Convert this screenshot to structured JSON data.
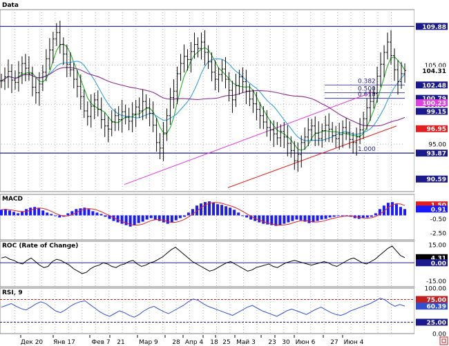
{
  "colors": {
    "frame": "#808080",
    "grid": "#b0b0b0",
    "axis_bg": "#ffffff",
    "price_bar": "#000000",
    "sma_fast": "#22b322",
    "sma_mid": "#33a0e0",
    "sma_slow": "#8a2a8a",
    "trend_channel": "#e040e0",
    "support_line": "#e02020",
    "hline": "#1a1a8c",
    "macd_pos": "#e02020",
    "macd_neg": "#1a1aff",
    "signal": "#e02020",
    "roc": "#000000",
    "rsi": "#3050d0",
    "rsi_levels": "#c02020"
  },
  "chart_data": [
    {
      "type": "line",
      "title": "Data",
      "x_axis": {
        "labels": [
          "Дек 20",
          "Янв 17",
          "Фев 7",
          "21",
          "Мар 9",
          "28",
          "Апр 4",
          "18",
          "25",
          "Май 3",
          "23",
          "30",
          "Июн 6",
          "27",
          "Июн 4"
        ]
      },
      "y_axis": {
        "range": [
          89,
          112
        ],
        "ticks": [
          95.0,
          100.0,
          105.0
        ]
      },
      "price_tags": [
        {
          "value": 109.88,
          "label": "109.88",
          "bg": "#1a1a8c",
          "color": "#ffffff"
        },
        {
          "value": 104.31,
          "label": "104.31",
          "bg": "#ffffff",
          "color": "#000000"
        },
        {
          "value": 102.48,
          "label": "102.48",
          "bg": "#1a1a8c",
          "color": "#ffffff"
        },
        {
          "value": 100.79,
          "label": "100.79",
          "bg": "#1a1a8c",
          "color": "#ffffff"
        },
        {
          "value": 100.23,
          "label": "100.23",
          "bg": "#e040e0",
          "color": "#ffffff"
        },
        {
          "value": 99.15,
          "label": "99.15",
          "bg": "#1a1a8c",
          "color": "#ffffff"
        },
        {
          "value": 96.95,
          "label": "96.95",
          "bg": "#e02020",
          "color": "#ffffff"
        },
        {
          "value": 93.87,
          "label": "93.87",
          "bg": "#1a1a8c",
          "color": "#ffffff"
        },
        {
          "value": 90.59,
          "label": "90.59",
          "bg": "#1a1a8c",
          "color": "#ffffff"
        }
      ],
      "fibonacci": [
        {
          "ratio": "0.382",
          "value": 102.48
        },
        {
          "ratio": "0.500",
          "value": 101.5
        },
        {
          "ratio": "0.618",
          "value": 100.79
        },
        {
          "ratio": "1.000",
          "value": 93.87
        }
      ],
      "horizontal_lines": [
        109.88,
        93.87
      ],
      "price_series": [
        103,
        103.5,
        104.2,
        103.1,
        102.8,
        104,
        105.2,
        104.6,
        103.9,
        102.2,
        101.5,
        102.6,
        104.1,
        105.8,
        106.9,
        108.3,
        109.1,
        107.6,
        106.4,
        105.1,
        104.4,
        103.2,
        102.3,
        101,
        99.2,
        98.5,
        99.8,
        100.6,
        99.4,
        98.1,
        97.3,
        96.9,
        97.8,
        98.6,
        98.1,
        99.1,
        98.4,
        97.9,
        98.8,
        99.7,
        99.2,
        100.4,
        99.6,
        98.9,
        97.4,
        95.2,
        94.5,
        96.3,
        98.6,
        100.9,
        101.7,
        103.9,
        105.2,
        106.1,
        105.7,
        106.7,
        107.6,
        107.1,
        107.9,
        106.6,
        105.4,
        104.1,
        103.2,
        103.8,
        104.5,
        103.2,
        101.8,
        100.6,
        102.4,
        103.5,
        102.9,
        101.7,
        100.7,
        100.1,
        99.4,
        98.6,
        97.8,
        97.1,
        96.8,
        96.3,
        95.8,
        96.6,
        95.9,
        95.1,
        94.2,
        92.9,
        93.7,
        95.2,
        95.9,
        96.8,
        97.3,
        96.4,
        95.7,
        96.7,
        97.4,
        96.9,
        96.1,
        95.7,
        96.2,
        97.1,
        96.4,
        95.6,
        95.2,
        95.9,
        96.8,
        98.2,
        99.6,
        100.4,
        101.4,
        103.6,
        105.1,
        106.6,
        107.9,
        106.2,
        104.4,
        102.9,
        103.9,
        104.31
      ],
      "support_line": {
        "from": 89.5,
        "to": 97.3
      },
      "channel_line": {
        "from": 89.9,
        "to": 101.6
      }
    },
    {
      "type": "bar",
      "title": "MACD",
      "y_axis": {
        "ticks": [
          1.5,
          -0.5,
          -2.5
        ],
        "range": [
          -3.5,
          3
        ]
      },
      "tags": [
        {
          "value": 1.5,
          "label": "1.50",
          "bg": "#e02020"
        },
        {
          "value": 0.9,
          "label": "0.91",
          "bg": "#1a1aff"
        }
      ],
      "histogram": [
        0.8,
        0.9,
        0.7,
        0.5,
        0.3,
        0.6,
        0.9,
        1.1,
        1.2,
        1.0,
        0.7,
        0.4,
        0.2,
        -0.1,
        -0.3,
        -0.2,
        0.3,
        0.6,
        0.9,
        1.0,
        1.1,
        0.9,
        0.6,
        0.4,
        0.2,
        -0.2,
        -0.5,
        -0.8,
        -1.0,
        -1.2,
        -1.4,
        -1.6,
        -1.4,
        -1.1,
        -0.9,
        -0.6,
        -0.4,
        -0.6,
        -0.8,
        -1.0,
        -1.2,
        -1.0,
        -0.7,
        -0.4,
        -0.2,
        0.4,
        0.9,
        1.4,
        1.7,
        1.9,
        2.0,
        1.8,
        1.6,
        1.5,
        1.3,
        1.1,
        0.8,
        0.4,
        0.0,
        -0.3,
        -0.6,
        -0.8,
        -1.0,
        -1.2,
        -1.3,
        -1.4,
        -1.5,
        -1.4,
        -1.2,
        -1.0,
        -0.8,
        -0.6,
        -0.7,
        -0.9,
        -1.1,
        -1.0,
        -0.8,
        -0.6,
        -0.5,
        -0.3,
        -0.2,
        -0.1,
        0.0,
        -0.1,
        -0.2,
        -0.4,
        -0.5,
        -0.4,
        -0.3,
        -0.2,
        0.3,
        0.9,
        1.4,
        1.8,
        1.9,
        1.6,
        1.2,
        0.9
      ]
    },
    {
      "type": "line",
      "title": "ROC (Rate of Change)",
      "y_axis": {
        "ticks": [
          15.0,
          0.0,
          -15.0
        ],
        "range": [
          -20,
          18
        ]
      },
      "tags": [
        {
          "value": 4.31,
          "label": "4.31",
          "bg": "#000000"
        },
        {
          "value": 0.0,
          "label": "0.00",
          "bg": "#1a1a8c"
        }
      ],
      "values": [
        4,
        5,
        3,
        2,
        0,
        -1,
        2,
        4,
        1,
        -2,
        -4,
        -3,
        1,
        3,
        2,
        0,
        -2,
        -5,
        -7,
        -9,
        -8,
        -5,
        -3,
        -2,
        0,
        -1,
        -3,
        -4,
        -2,
        -1,
        1,
        2,
        -1,
        -3,
        -2,
        0,
        1,
        3,
        5,
        8,
        11,
        13,
        10,
        7,
        4,
        1,
        -1,
        -3,
        -5,
        -7,
        -6,
        -4,
        -2,
        0,
        1,
        -1,
        -3,
        -5,
        -7,
        -6,
        -4,
        -3,
        -2,
        -1,
        -3,
        -4,
        -2,
        0,
        1,
        2,
        1,
        0,
        -1,
        -2,
        -1,
        0,
        1,
        0,
        -2,
        -3,
        -1,
        1,
        3,
        4,
        2,
        0,
        -1,
        1,
        3,
        6,
        9,
        12,
        14,
        10,
        6,
        4.31
      ]
    },
    {
      "type": "line",
      "title": "RSI, 9",
      "y_axis": {
        "ticks": [
          100.0,
          75.0,
          60.39,
          25.0,
          0.0
        ],
        "range": [
          0,
          100
        ]
      },
      "levels": [
        75,
        25
      ],
      "tags": [
        {
          "value": 75.0,
          "label": "75.00",
          "bg": "#c02020"
        },
        {
          "value": 60.39,
          "label": "60.39",
          "bg": "#3050d0"
        },
        {
          "value": 25.0,
          "label": "25.00",
          "bg": "#1a1a8c"
        }
      ],
      "values": [
        58,
        62,
        66,
        60,
        55,
        52,
        58,
        65,
        70,
        66,
        58,
        50,
        46,
        52,
        60,
        66,
        70,
        72,
        64,
        56,
        48,
        42,
        38,
        44,
        50,
        46,
        40,
        36,
        42,
        50,
        56,
        60,
        54,
        48,
        44,
        50,
        56,
        62,
        70,
        76,
        73,
        66,
        60,
        56,
        52,
        48,
        44,
        40,
        46,
        52,
        58,
        62,
        56,
        50,
        46,
        42,
        38,
        44,
        50,
        54,
        50,
        46,
        42,
        48,
        54,
        58,
        52,
        46,
        42,
        40,
        44,
        50,
        54,
        58,
        62,
        66,
        72,
        78,
        74,
        66,
        60,
        64,
        60.39
      ]
    }
  ],
  "panels": {
    "price_title": "Data",
    "macd_title": "MACD",
    "roc_title": "ROC (Rate of Change)",
    "rsi_title": "RSI, 9"
  }
}
